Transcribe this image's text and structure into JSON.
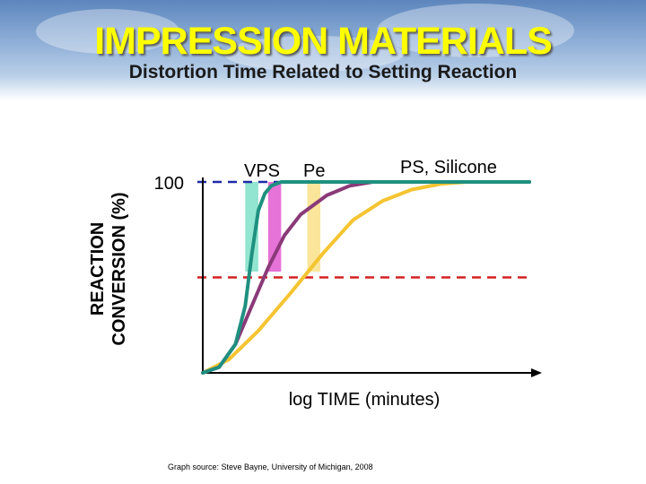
{
  "header": {
    "title": "IMPRESSION MATERIALS",
    "subtitle": "Distortion Time Related to Setting Reaction"
  },
  "colors": {
    "title": "#ffff00",
    "vps": "#1f9080",
    "pe": "#8a3a78",
    "ps_silicone": "#f5c431",
    "reference_100": "#1e2aa8",
    "reference_mid": "#d42020",
    "bar_vps": "#7fe0c8",
    "bar_pe": "#e25ad0",
    "bar_ps": "#f9e08a"
  },
  "chart_data": {
    "type": "line",
    "title": "",
    "xlabel": "log TIME (minutes)",
    "ylabel": "REACTION CONVERSION (%)",
    "ytick_labels": [
      {
        "value": 100,
        "label": "100"
      }
    ],
    "xlim": [
      0,
      100
    ],
    "ylim": [
      0,
      100
    ],
    "reference_lines": [
      {
        "y": 100,
        "style": "dashed",
        "color": "#1e2aa8"
      },
      {
        "y": 50,
        "style": "dashed",
        "color": "#d42020"
      }
    ],
    "series": [
      {
        "name": "VPS",
        "color": "#1f9080",
        "x": [
          0,
          5,
          10,
          13,
          15,
          17,
          19,
          21,
          24,
          28,
          34,
          100
        ],
        "y": [
          0,
          3,
          15,
          35,
          62,
          85,
          94,
          98,
          100,
          100,
          100,
          100
        ]
      },
      {
        "name": "Pe",
        "color": "#8a3a78",
        "x": [
          0,
          5,
          10,
          15,
          20,
          25,
          30,
          38,
          45,
          52,
          60,
          100
        ],
        "y": [
          0,
          3,
          15,
          35,
          55,
          72,
          83,
          93,
          98,
          100,
          100,
          100
        ]
      },
      {
        "name": "PS, Silicone",
        "color": "#f5c431",
        "x": [
          0,
          8,
          17,
          27,
          37,
          46,
          55,
          64,
          73,
          81,
          89,
          100
        ],
        "y": [
          0,
          7,
          22,
          42,
          63,
          80,
          90,
          96,
          99,
          100,
          100,
          100
        ]
      }
    ],
    "bars": [
      {
        "series": "VPS",
        "x_from": 13,
        "x_to": 17,
        "y_from": 53,
        "y_to": 100
      },
      {
        "series": "Pe",
        "x_from": 20,
        "x_to": 24,
        "y_from": 53,
        "y_to": 100
      },
      {
        "series": "PS, Silicone",
        "x_from": 32,
        "x_to": 36,
        "y_from": 53,
        "y_to": 100
      }
    ],
    "series_labels": [
      "VPS",
      "Pe",
      "PS, Silicone"
    ],
    "grid": false,
    "legend": "none",
    "source": "Graph source: Steve Bayne, University of Michigan, 2008"
  }
}
